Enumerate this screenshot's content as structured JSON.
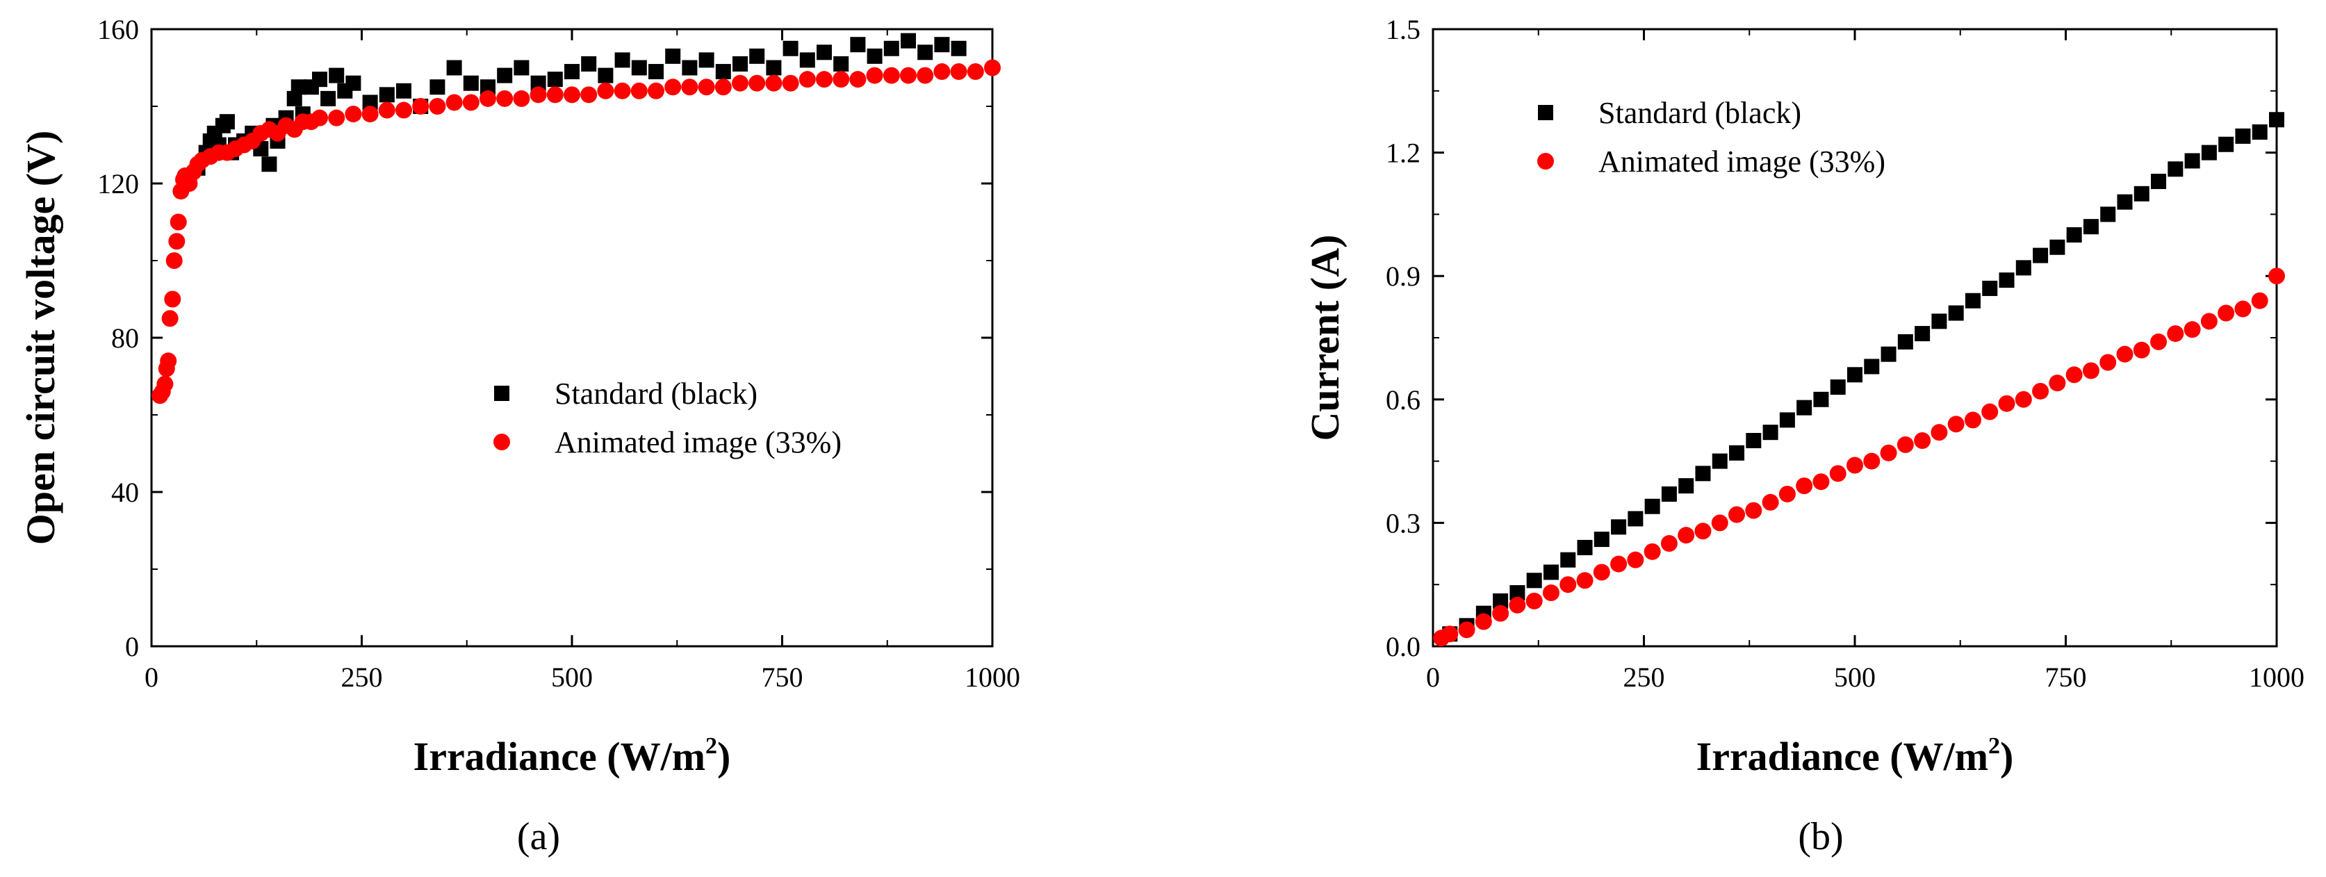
{
  "chart_data": [
    {
      "id": "a",
      "type": "scatter",
      "panel_label": "(a)",
      "title": "",
      "xlabel": "Irradiance (W/m",
      "xlabel_sup": "2",
      "xlabel_close": ")",
      "ylabel": "Open circuit voltage (V)",
      "xlim": [
        0,
        1000
      ],
      "ylim": [
        0,
        160
      ],
      "xticks": [
        0,
        250,
        500,
        750,
        1000
      ],
      "yticks": [
        0,
        40,
        80,
        120,
        160
      ],
      "ytick_labels": [
        "0",
        "40",
        "80",
        "120",
        "160"
      ],
      "grid": false,
      "legend_position": "center-right",
      "series": [
        {
          "name": "Standard (black)",
          "marker": "square",
          "color": "#000000",
          "points": [
            [
              45,
              121
            ],
            [
              55,
              124
            ],
            [
              65,
              128
            ],
            [
              70,
              131
            ],
            [
              75,
              133
            ],
            [
              80,
              130
            ],
            [
              85,
              135
            ],
            [
              90,
              136
            ],
            [
              95,
              128
            ],
            [
              100,
              130
            ],
            [
              110,
              131
            ],
            [
              120,
              133
            ],
            [
              130,
              129
            ],
            [
              140,
              125
            ],
            [
              145,
              135
            ],
            [
              150,
              131
            ],
            [
              160,
              137
            ],
            [
              170,
              142
            ],
            [
              175,
              145
            ],
            [
              180,
              138
            ],
            [
              190,
              145
            ],
            [
              200,
              147
            ],
            [
              210,
              142
            ],
            [
              220,
              148
            ],
            [
              230,
              144
            ],
            [
              240,
              146
            ],
            [
              260,
              141
            ],
            [
              280,
              143
            ],
            [
              300,
              144
            ],
            [
              320,
              140
            ],
            [
              340,
              145
            ],
            [
              360,
              150
            ],
            [
              380,
              146
            ],
            [
              400,
              145
            ],
            [
              420,
              148
            ],
            [
              440,
              150
            ],
            [
              460,
              146
            ],
            [
              480,
              147
            ],
            [
              500,
              149
            ],
            [
              520,
              151
            ],
            [
              540,
              148
            ],
            [
              560,
              152
            ],
            [
              580,
              150
            ],
            [
              600,
              149
            ],
            [
              620,
              153
            ],
            [
              640,
              150
            ],
            [
              660,
              152
            ],
            [
              680,
              149
            ],
            [
              700,
              151
            ],
            [
              720,
              153
            ],
            [
              740,
              150
            ],
            [
              760,
              155
            ],
            [
              780,
              152
            ],
            [
              800,
              154
            ],
            [
              820,
              151
            ],
            [
              840,
              156
            ],
            [
              860,
              153
            ],
            [
              880,
              155
            ],
            [
              900,
              157
            ],
            [
              920,
              154
            ],
            [
              940,
              156
            ],
            [
              960,
              155
            ]
          ]
        },
        {
          "name": "Animated image (33%)",
          "marker": "circle",
          "color": "#ff0000",
          "points": [
            [
              10,
              65
            ],
            [
              13,
              66
            ],
            [
              16,
              68
            ],
            [
              18,
              72
            ],
            [
              20,
              74
            ],
            [
              22,
              85
            ],
            [
              25,
              90
            ],
            [
              27,
              100
            ],
            [
              30,
              105
            ],
            [
              32,
              110
            ],
            [
              35,
              118
            ],
            [
              38,
              121
            ],
            [
              40,
              122
            ],
            [
              45,
              120
            ],
            [
              50,
              123
            ],
            [
              55,
              125
            ],
            [
              60,
              126
            ],
            [
              70,
              127
            ],
            [
              80,
              128
            ],
            [
              90,
              128
            ],
            [
              100,
              129
            ],
            [
              110,
              130
            ],
            [
              120,
              131
            ],
            [
              130,
              133
            ],
            [
              140,
              134
            ],
            [
              150,
              133
            ],
            [
              160,
              135
            ],
            [
              170,
              134
            ],
            [
              180,
              136
            ],
            [
              190,
              136
            ],
            [
              200,
              137
            ],
            [
              220,
              137
            ],
            [
              240,
              138
            ],
            [
              260,
              138
            ],
            [
              280,
              139
            ],
            [
              300,
              139
            ],
            [
              320,
              140
            ],
            [
              340,
              140
            ],
            [
              360,
              141
            ],
            [
              380,
              141
            ],
            [
              400,
              142
            ],
            [
              420,
              142
            ],
            [
              440,
              142
            ],
            [
              460,
              143
            ],
            [
              480,
              143
            ],
            [
              500,
              143
            ],
            [
              520,
              143
            ],
            [
              540,
              144
            ],
            [
              560,
              144
            ],
            [
              580,
              144
            ],
            [
              600,
              144
            ],
            [
              620,
              145
            ],
            [
              640,
              145
            ],
            [
              660,
              145
            ],
            [
              680,
              145
            ],
            [
              700,
              146
            ],
            [
              720,
              146
            ],
            [
              740,
              146
            ],
            [
              760,
              146
            ],
            [
              780,
              147
            ],
            [
              800,
              147
            ],
            [
              820,
              147
            ],
            [
              840,
              147
            ],
            [
              860,
              148
            ],
            [
              880,
              148
            ],
            [
              900,
              148
            ],
            [
              920,
              148
            ],
            [
              940,
              149
            ],
            [
              960,
              149
            ],
            [
              980,
              149
            ],
            [
              1000,
              150
            ]
          ]
        }
      ]
    },
    {
      "id": "b",
      "type": "scatter",
      "panel_label": "(b)",
      "title": "",
      "xlabel": "Irradiance (W/m",
      "xlabel_sup": "2",
      "xlabel_close": ")",
      "ylabel": "Current (A)",
      "xlim": [
        0,
        1000
      ],
      "ylim": [
        0,
        1.5
      ],
      "xticks": [
        0,
        250,
        500,
        750,
        1000
      ],
      "yticks": [
        0,
        0.3,
        0.6,
        0.9,
        1.2,
        1.5
      ],
      "ytick_labels": [
        "0.0",
        "0.3",
        "0.6",
        "0.9",
        "1.2",
        "1.5"
      ],
      "grid": false,
      "legend_position": "top-left",
      "series": [
        {
          "name": "Standard (black)",
          "marker": "square",
          "color": "#000000",
          "points": [
            [
              20,
              0.03
            ],
            [
              40,
              0.05
            ],
            [
              60,
              0.08
            ],
            [
              80,
              0.11
            ],
            [
              100,
              0.13
            ],
            [
              120,
              0.16
            ],
            [
              140,
              0.18
            ],
            [
              160,
              0.21
            ],
            [
              180,
              0.24
            ],
            [
              200,
              0.26
            ],
            [
              220,
              0.29
            ],
            [
              240,
              0.31
            ],
            [
              260,
              0.34
            ],
            [
              280,
              0.37
            ],
            [
              300,
              0.39
            ],
            [
              320,
              0.42
            ],
            [
              340,
              0.45
            ],
            [
              360,
              0.47
            ],
            [
              380,
              0.5
            ],
            [
              400,
              0.52
            ],
            [
              420,
              0.55
            ],
            [
              440,
              0.58
            ],
            [
              460,
              0.6
            ],
            [
              480,
              0.63
            ],
            [
              500,
              0.66
            ],
            [
              520,
              0.68
            ],
            [
              540,
              0.71
            ],
            [
              560,
              0.74
            ],
            [
              580,
              0.76
            ],
            [
              600,
              0.79
            ],
            [
              620,
              0.81
            ],
            [
              640,
              0.84
            ],
            [
              660,
              0.87
            ],
            [
              680,
              0.89
            ],
            [
              700,
              0.92
            ],
            [
              720,
              0.95
            ],
            [
              740,
              0.97
            ],
            [
              760,
              1.0
            ],
            [
              780,
              1.02
            ],
            [
              800,
              1.05
            ],
            [
              820,
              1.08
            ],
            [
              840,
              1.1
            ],
            [
              860,
              1.13
            ],
            [
              880,
              1.16
            ],
            [
              900,
              1.18
            ],
            [
              920,
              1.2
            ],
            [
              940,
              1.22
            ],
            [
              960,
              1.24
            ],
            [
              980,
              1.25
            ],
            [
              1000,
              1.28
            ]
          ]
        },
        {
          "name": "Animated image (33%)",
          "marker": "circle",
          "color": "#ff0000",
          "points": [
            [
              10,
              0.02
            ],
            [
              20,
              0.03
            ],
            [
              40,
              0.04
            ],
            [
              60,
              0.06
            ],
            [
              80,
              0.08
            ],
            [
              100,
              0.1
            ],
            [
              120,
              0.11
            ],
            [
              140,
              0.13
            ],
            [
              160,
              0.15
            ],
            [
              180,
              0.16
            ],
            [
              200,
              0.18
            ],
            [
              220,
              0.2
            ],
            [
              240,
              0.21
            ],
            [
              260,
              0.23
            ],
            [
              280,
              0.25
            ],
            [
              300,
              0.27
            ],
            [
              320,
              0.28
            ],
            [
              340,
              0.3
            ],
            [
              360,
              0.32
            ],
            [
              380,
              0.33
            ],
            [
              400,
              0.35
            ],
            [
              420,
              0.37
            ],
            [
              440,
              0.39
            ],
            [
              460,
              0.4
            ],
            [
              480,
              0.42
            ],
            [
              500,
              0.44
            ],
            [
              520,
              0.45
            ],
            [
              540,
              0.47
            ],
            [
              560,
              0.49
            ],
            [
              580,
              0.5
            ],
            [
              600,
              0.52
            ],
            [
              620,
              0.54
            ],
            [
              640,
              0.55
            ],
            [
              660,
              0.57
            ],
            [
              680,
              0.59
            ],
            [
              700,
              0.6
            ],
            [
              720,
              0.62
            ],
            [
              740,
              0.64
            ],
            [
              760,
              0.66
            ],
            [
              780,
              0.67
            ],
            [
              800,
              0.69
            ],
            [
              820,
              0.71
            ],
            [
              840,
              0.72
            ],
            [
              860,
              0.74
            ],
            [
              880,
              0.76
            ],
            [
              900,
              0.77
            ],
            [
              920,
              0.79
            ],
            [
              940,
              0.81
            ],
            [
              960,
              0.82
            ],
            [
              980,
              0.84
            ],
            [
              1000,
              0.9
            ]
          ]
        }
      ]
    }
  ]
}
